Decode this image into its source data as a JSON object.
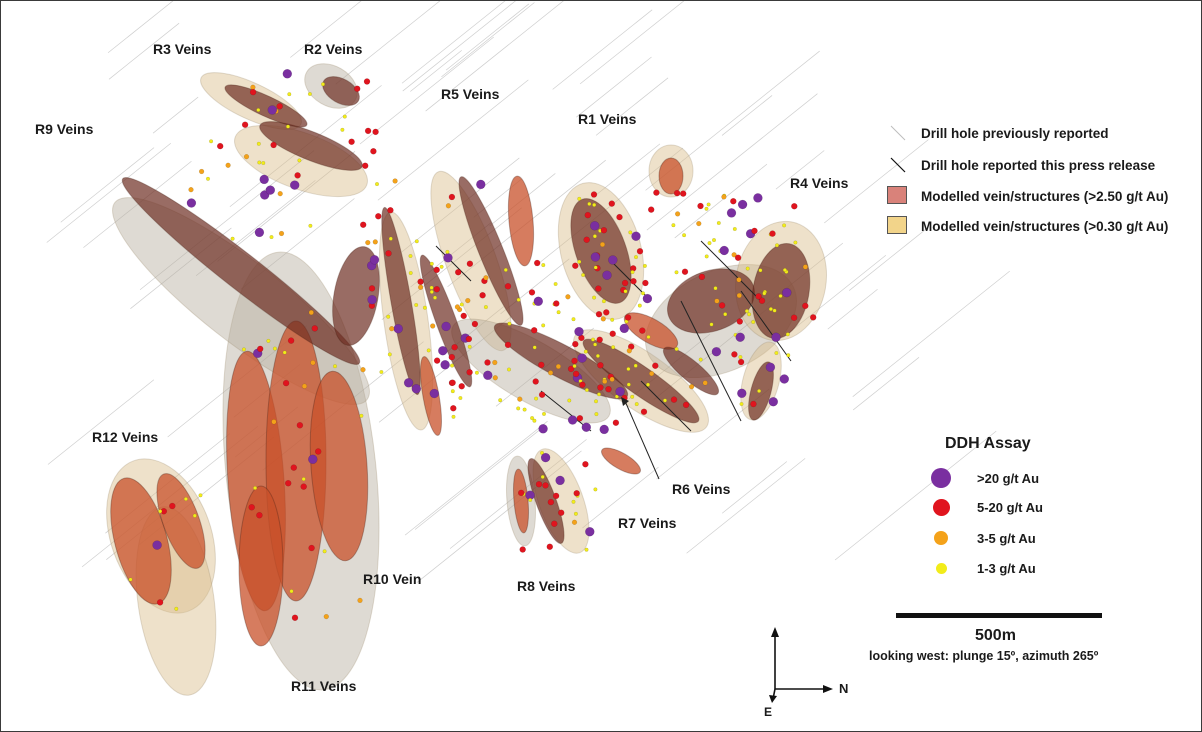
{
  "labels": {
    "r3": "R3 Veins",
    "r2": "R2 Veins",
    "r9": "R9 Veins",
    "r5": "R5 Veins",
    "r1": "R1 Veins",
    "r4": "R4 Veins",
    "r12": "R12 Veins",
    "r6": "R6 Veins",
    "r7": "R7 Veins",
    "r8": "R8 Veins",
    "r10": "R10 Vein",
    "r11": "R11 Veins"
  },
  "legend": {
    "prev_hole": "Drill hole previously reported",
    "new_hole": "Drill hole reported this press release",
    "high_grade": "Modelled vein/structures (>2.50 g/t Au)",
    "low_grade": "Modelled vein/structures (>0.30 g/t Au)",
    "high_grade_color": "#d9827a",
    "low_grade_color": "#f2d48a"
  },
  "assay": {
    "title": "DDH Assay",
    "items": [
      {
        "label": ">20 g/t Au",
        "color": "#7a2fa0"
      },
      {
        "label": "5-20 g/t Au",
        "color": "#e0141e"
      },
      {
        "label": "3-5 g/t Au",
        "color": "#f4a21a"
      },
      {
        "label": "1-3 g/t Au",
        "color": "#f2ec1a"
      }
    ]
  },
  "scale": {
    "value": "500m",
    "view": "looking west: plunge 15º, azimuth 265º"
  },
  "north_arrow": {
    "north": "N",
    "east": "E"
  },
  "colors": {
    "vein_dark": "#6e2e22",
    "vein_orange": "#c8502a",
    "halo_tan": "#d9bd8a",
    "halo_grey": "#b5ad9e",
    "drill_line": "#cfcfcf"
  }
}
